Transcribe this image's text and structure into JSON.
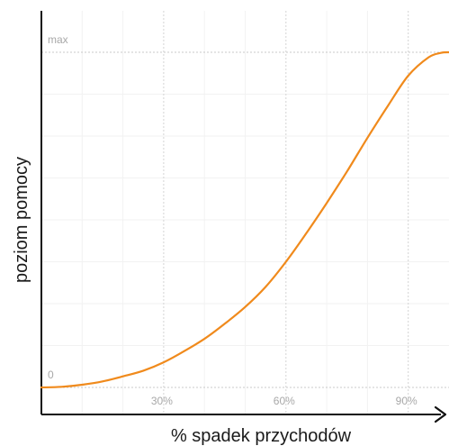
{
  "chart_data": {
    "type": "line",
    "xlabel": "% spadek przychodów",
    "ylabel": "poziom pomocy",
    "xlim": [
      0,
      100
    ],
    "ylim": [
      0,
      1
    ],
    "x_ticks": [
      {
        "value": 30,
        "label": "30%"
      },
      {
        "value": 60,
        "label": "60%"
      },
      {
        "value": 90,
        "label": "90%"
      }
    ],
    "y_ticks": [
      {
        "value": 0,
        "label": "0"
      },
      {
        "value": 1,
        "label": "max"
      }
    ],
    "grid": true,
    "series": [
      {
        "color": "#f08a1c",
        "x": [
          0,
          5,
          10,
          15,
          20,
          25,
          30,
          35,
          40,
          45,
          50,
          55,
          60,
          65,
          70,
          75,
          80,
          85,
          90,
          95,
          98,
          100
        ],
        "y": [
          0.0,
          0.002,
          0.008,
          0.018,
          0.033,
          0.05,
          0.075,
          0.108,
          0.145,
          0.19,
          0.24,
          0.3,
          0.375,
          0.46,
          0.55,
          0.645,
          0.745,
          0.84,
          0.93,
          0.985,
          0.998,
          1.0
        ]
      }
    ]
  }
}
